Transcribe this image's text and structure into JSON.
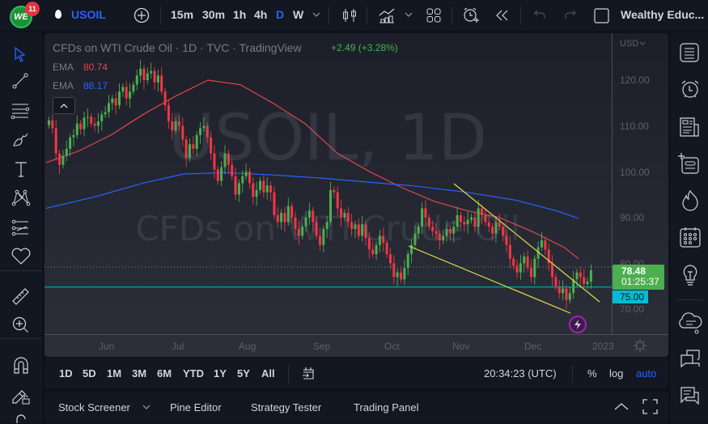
{
  "topbar": {
    "logo_text": "WE",
    "notification_count": "11",
    "symbol": "USOIL",
    "intervals": [
      "15m",
      "30m",
      "1h",
      "4h",
      "D",
      "W"
    ],
    "active_interval": "D",
    "layout_name": "Wealthy Educ..."
  },
  "legend": {
    "title": "CFDs on WTI Crude Oil · 1D · TVC · TradingView",
    "change": "+2.49 (+3.28%)",
    "ema1_label": "EMA",
    "ema1_value": "80.74",
    "ema2_label": "EMA",
    "ema2_value": "88.17"
  },
  "watermark": {
    "line1": "USOIL, 1D",
    "line2": "CFDs on WTI Crude Oil"
  },
  "price_axis": {
    "currency": "USD",
    "ticks": [
      "120.00",
      "110.00",
      "100.00",
      "90.00",
      "80.00",
      "70.00"
    ],
    "last_price": "78.48",
    "countdown": "01:25:37",
    "line_label": "75.00"
  },
  "time_axis": {
    "ticks": [
      "Jun",
      "Jul",
      "Aug",
      "Sep",
      "Oct",
      "Nov",
      "Dec",
      "2023"
    ]
  },
  "ranges": [
    "1D",
    "5D",
    "1M",
    "3M",
    "6M",
    "YTD",
    "1Y",
    "5Y",
    "All"
  ],
  "clock": "20:34:23 (UTC)",
  "scale_options": {
    "percent": "%",
    "log": "log",
    "auto": "auto"
  },
  "panels": [
    "Stock Screener",
    "Pine Editor",
    "Strategy Tester",
    "Trading Panel"
  ],
  "colors": {
    "up": "#26a69a",
    "up_candle": "#4caf50",
    "down_candle": "#f23645",
    "ema_fast": "#e0464e",
    "ema_slow": "#2962ff",
    "trendline": "#e6d94a",
    "hline": "#00bcd4",
    "accent": "#2962ff"
  },
  "chart_data": {
    "type": "candlestick",
    "title": "CFDs on WTI Crude Oil · 1D · TVC",
    "ylim": [
      65,
      128
    ],
    "yticks": [
      70,
      80,
      90,
      100,
      110,
      120
    ],
    "xticks": [
      "Jun",
      "Jul",
      "Aug",
      "Sep",
      "Oct",
      "Nov",
      "Dec",
      "2023"
    ],
    "horizontal_line": 75.0,
    "last_price": 78.48,
    "ema_fast_last": 80.74,
    "ema_slow_last": 88.17,
    "closes": [
      111.2,
      109.5,
      104,
      101.5,
      103.5,
      105,
      107.5,
      108,
      110.5,
      109.3,
      111.8,
      112,
      110.5,
      110,
      111,
      112.5,
      113,
      115,
      116,
      114.5,
      117.5,
      118.5,
      116,
      117.5,
      119,
      121,
      122.5,
      120,
      121.5,
      122,
      119.5,
      121,
      117.5,
      114.5,
      111,
      109,
      111,
      110,
      107,
      103,
      106,
      105,
      108,
      109.5,
      110,
      107.5,
      104,
      100.5,
      98,
      101,
      104,
      101.5,
      99,
      95,
      97.5,
      99,
      100,
      97.5,
      94.5,
      96,
      98,
      95.5,
      97,
      95.5,
      90.5,
      89,
      91,
      89,
      92.5,
      90,
      87.5,
      86,
      88,
      90,
      91.5,
      89,
      86,
      84,
      87.5,
      89,
      96,
      95.5,
      92,
      90,
      91,
      89,
      87.5,
      88.5,
      86,
      88.5,
      85.5,
      83,
      82,
      84,
      86,
      84.5,
      82,
      80,
      77,
      78,
      76.5,
      79,
      82,
      84,
      86.5,
      88,
      92,
      90,
      88,
      87,
      86.5,
      85,
      86,
      87.5,
      86.5,
      88,
      90.5,
      89,
      88.5,
      89.5,
      90,
      88,
      92,
      90.5,
      89,
      88,
      86.5,
      89,
      88,
      86,
      84,
      81,
      79.5,
      78,
      80,
      81.5,
      79,
      77,
      81,
      83.5,
      85,
      83,
      80,
      77,
      75,
      73.5,
      74.5,
      72,
      73.5,
      76.5,
      78,
      77,
      75.5,
      76,
      78.48
    ],
    "ema_fast_path": [
      [
        0,
        101.5
      ],
      [
        30,
        105
      ],
      [
        60,
        109.5
      ],
      [
        85,
        112
      ],
      [
        110,
        115
      ],
      [
        140,
        120
      ],
      [
        170,
        124.5
      ],
      [
        200,
        126
      ],
      [
        230,
        127.5
      ],
      [
        260,
        127
      ],
      [
        300,
        125.5
      ],
      [
        340,
        122
      ],
      [
        380,
        116.5
      ],
      [
        420,
        113
      ],
      [
        460,
        112
      ],
      [
        500,
        108
      ],
      [
        540,
        105
      ],
      [
        580,
        101.5
      ],
      [
        620,
        98.5
      ],
      [
        640,
        96.5
      ]
    ],
    "ema_slow_path": [
      [
        0,
        91
      ],
      [
        60,
        93
      ],
      [
        120,
        95.5
      ],
      [
        180,
        97.5
      ],
      [
        240,
        98
      ],
      [
        300,
        97.5
      ],
      [
        360,
        96.5
      ],
      [
        420,
        96
      ],
      [
        480,
        94.5
      ],
      [
        540,
        93.5
      ],
      [
        600,
        91.5
      ],
      [
        650,
        88.17
      ]
    ],
    "trendlines": [
      {
        "from": [
          505,
          96
        ],
        "to": [
          688,
          73
        ]
      },
      {
        "from": [
          562,
          104
        ],
        "to": [
          742,
          74
        ]
      }
    ]
  }
}
